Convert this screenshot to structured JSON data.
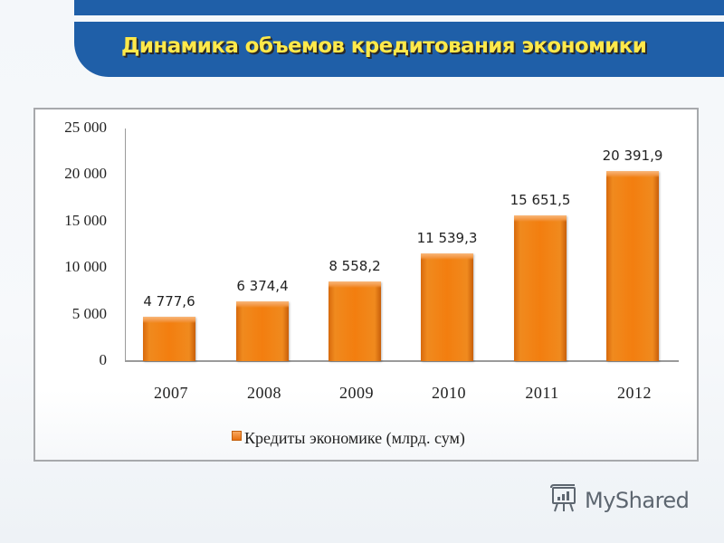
{
  "header": {
    "title": "Динамика объемов кредитования экономики"
  },
  "chart_data": {
    "type": "bar",
    "title": "Динамика объемов кредитования экономики",
    "categories": [
      "2007",
      "2008",
      "2009",
      "2010",
      "2011",
      "2012"
    ],
    "series": [
      {
        "name": "Кредиты экономике (млрд. сум)",
        "values": [
          4777.6,
          6374.4,
          8558.2,
          11539.3,
          15651.5,
          20391.9
        ],
        "labels": [
          "4 777,6",
          "6 374,4",
          "8 558,2",
          "11 539,3",
          "15 651,5",
          "20 391,9"
        ],
        "color": "#f37e0f"
      }
    ],
    "xlabel": "",
    "ylabel": "",
    "ylim": [
      0,
      25000
    ],
    "yticks": [
      0,
      5000,
      10000,
      15000,
      20000,
      25000
    ],
    "ytick_labels": [
      "0",
      "5 000",
      "10 000",
      "15 000",
      "20 000",
      "25 000"
    ],
    "grid": false,
    "legend_position": "bottom"
  },
  "legend": {
    "label": "Кредиты экономике (млрд. сум)"
  },
  "watermark": {
    "text": "MyShared",
    "icon": "presentation-board-icon"
  },
  "colors": {
    "header_bg": "#1f5fa8",
    "title_text": "#ffe94a",
    "bar": "#f37e0f",
    "frame_border": "#a7a9ac"
  }
}
